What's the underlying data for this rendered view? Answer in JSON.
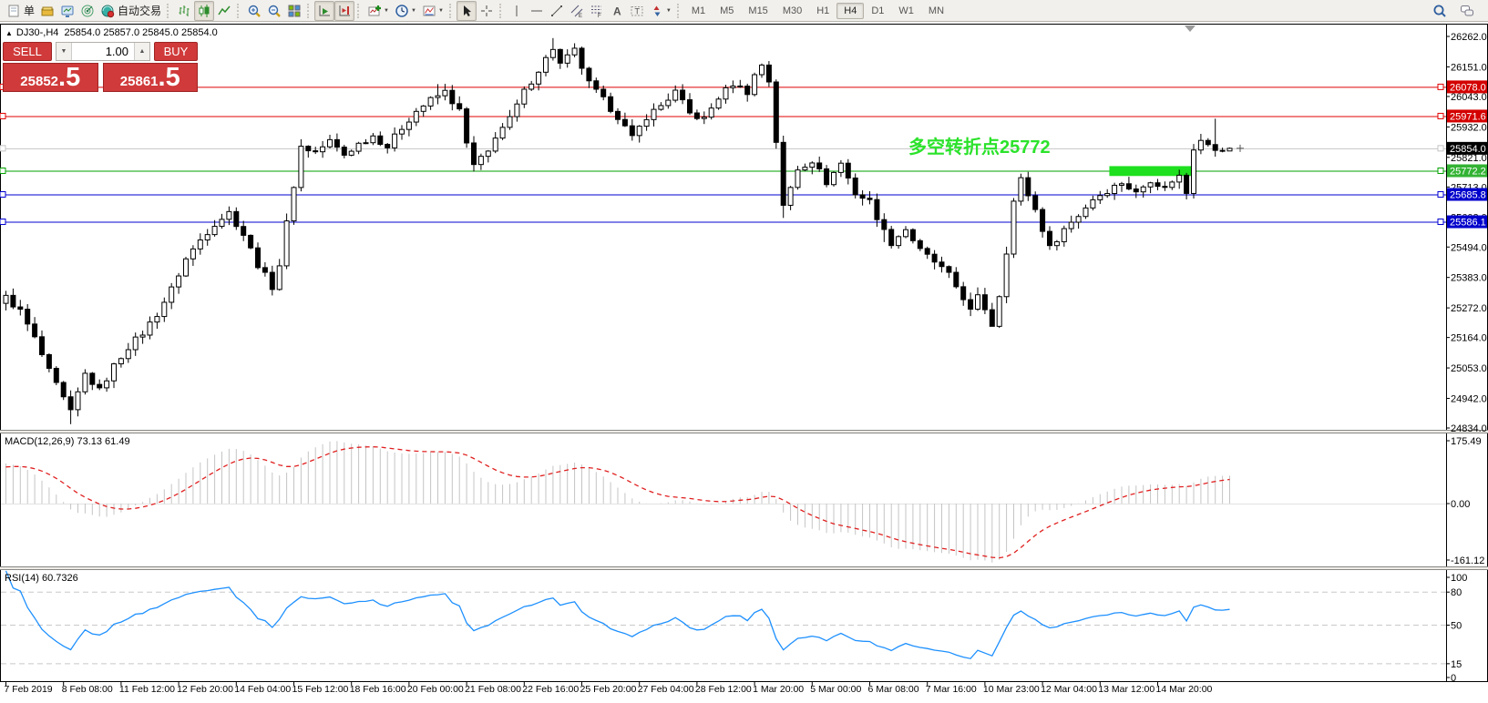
{
  "toolbar": {
    "groups": [
      {
        "name": "file",
        "items": [
          {
            "name": "new-order-button",
            "icon": "doc",
            "label": "单"
          },
          {
            "name": "market-watch-button",
            "icon": "gold"
          },
          {
            "name": "chart-window-button",
            "icon": "monitor"
          },
          {
            "name": "signals-button",
            "icon": "radar"
          },
          {
            "name": "autotrading-button",
            "icon": "autotrade",
            "label": "自动交易"
          }
        ]
      },
      {
        "name": "chart-type",
        "items": [
          {
            "name": "bar-chart-button",
            "icon": "bars"
          },
          {
            "name": "candlestick-chart-button",
            "icon": "candles",
            "pressed": true
          },
          {
            "name": "line-chart-button",
            "icon": "linechart"
          }
        ]
      },
      {
        "name": "zoom",
        "items": [
          {
            "name": "zoom-in-button",
            "icon": "zoomin"
          },
          {
            "name": "zoom-out-button",
            "icon": "zoomout"
          },
          {
            "name": "tile-windows-button",
            "icon": "tile"
          }
        ]
      },
      {
        "name": "scroll",
        "items": [
          {
            "name": "auto-scroll-button",
            "icon": "autoscroll",
            "pressed": true
          },
          {
            "name": "chart-shift-button",
            "icon": "shift",
            "pressed": true
          }
        ]
      },
      {
        "name": "insert",
        "items": [
          {
            "name": "indicators-button",
            "icon": "indicators",
            "dropdown": true
          },
          {
            "name": "periods-button",
            "icon": "clock",
            "dropdown": true
          },
          {
            "name": "templates-button",
            "icon": "template",
            "dropdown": true
          }
        ]
      },
      {
        "name": "pointer",
        "items": [
          {
            "name": "cursor-button",
            "icon": "cursor",
            "pressed": true
          },
          {
            "name": "crosshair-button",
            "icon": "crosshair"
          }
        ]
      },
      {
        "name": "objects",
        "items": [
          {
            "name": "vertical-line-button",
            "icon": "vline"
          },
          {
            "name": "horizontal-line-button",
            "icon": "hline"
          },
          {
            "name": "trendline-button",
            "icon": "trend"
          },
          {
            "name": "channel-button",
            "icon": "channel"
          },
          {
            "name": "fibonacci-button",
            "icon": "fibo"
          },
          {
            "name": "text-button",
            "icon": "textA"
          },
          {
            "name": "label-button",
            "icon": "labelT"
          },
          {
            "name": "arrows-button",
            "icon": "arrows",
            "dropdown": true
          }
        ]
      },
      {
        "name": "timeframes",
        "items": [
          {
            "name": "tf-m1",
            "label": "M1"
          },
          {
            "name": "tf-m5",
            "label": "M5"
          },
          {
            "name": "tf-m15",
            "label": "M15"
          },
          {
            "name": "tf-m30",
            "label": "M30"
          },
          {
            "name": "tf-h1",
            "label": "H1"
          },
          {
            "name": "tf-h4",
            "label": "H4",
            "active": true
          },
          {
            "name": "tf-d1",
            "label": "D1"
          },
          {
            "name": "tf-w1",
            "label": "W1"
          },
          {
            "name": "tf-mn",
            "label": "MN"
          }
        ]
      }
    ],
    "right": [
      {
        "name": "search-button",
        "icon": "search"
      },
      {
        "name": "community-button",
        "icon": "chat"
      }
    ]
  },
  "chart": {
    "title_symbol": "DJ30-,H4",
    "title_ohlc": "25854.0 25857.0 25845.0 25854.0",
    "collapse_glyph": "▲"
  },
  "trade_panel": {
    "sell_label": "SELL",
    "buy_label": "BUY",
    "volume": "1.00",
    "sell_price_main": "25852",
    "sell_price_frac": ".5",
    "buy_price_main": "25861",
    "buy_price_frac": ".5",
    "panel_color": "#d03a3a"
  },
  "chart_data": {
    "type": "candlestick",
    "symbol": "DJ30-",
    "timeframe": "H4",
    "bars_visible": 171,
    "current_ohlc": {
      "open": 25854.0,
      "high": 25857.0,
      "low": 25845.0,
      "close": 25854.0
    },
    "price_axis_ticks": [
      "26262.0",
      "26151.0",
      "26043.0",
      "25932.0",
      "25821.0",
      "25713.0",
      "25602.0",
      "25494.0",
      "25383.0",
      "25272.0",
      "25164.0",
      "25053.0",
      "24942.0",
      "24834.0"
    ],
    "time_axis_ticks": [
      {
        "label": "7 Feb 2019",
        "idx": 0
      },
      {
        "label": "8 Feb 08:00",
        "idx": 8
      },
      {
        "label": "11 Feb 12:00",
        "idx": 16
      },
      {
        "label": "12 Feb 20:00",
        "idx": 24
      },
      {
        "label": "14 Feb 04:00",
        "idx": 32
      },
      {
        "label": "15 Feb 12:00",
        "idx": 40
      },
      {
        "label": "18 Feb 16:00",
        "idx": 48
      },
      {
        "label": "20 Feb 00:00",
        "idx": 56
      },
      {
        "label": "21 Feb 08:00",
        "idx": 64
      },
      {
        "label": "22 Feb 16:00",
        "idx": 72
      },
      {
        "label": "25 Feb 20:00",
        "idx": 80
      },
      {
        "label": "27 Feb 04:00",
        "idx": 88
      },
      {
        "label": "28 Feb 12:00",
        "idx": 96
      },
      {
        "label": "1 Mar 20:00",
        "idx": 104
      },
      {
        "label": "5 Mar 00:00",
        "idx": 112
      },
      {
        "label": "6 Mar 08:00",
        "idx": 120
      },
      {
        "label": "7 Mar 16:00",
        "idx": 128
      },
      {
        "label": "10 Mar 23:00",
        "idx": 136
      },
      {
        "label": "12 Mar 04:00",
        "idx": 144
      },
      {
        "label": "13 Mar 12:00",
        "idx": 152
      },
      {
        "label": "14 Mar 20:00",
        "idx": 160
      }
    ],
    "levels": [
      {
        "price": 26078.0,
        "label": "26078.0",
        "color": "#e00000",
        "badge": "#d40000"
      },
      {
        "price": 25971.6,
        "label": "25971.6",
        "color": "#e00000",
        "badge": "#d40000"
      },
      {
        "price": 25854.0,
        "label": "25854.0",
        "color": "#c4c4c4",
        "badge": "#000000",
        "current": true
      },
      {
        "price": 25772.2,
        "label": "25772.2",
        "color": "#00a000",
        "badge": "#33b333"
      },
      {
        "price": 25685.8,
        "label": "25685.8",
        "color": "#0000d0",
        "badge": "#0000cc"
      },
      {
        "price": 25586.1,
        "label": "25586.1",
        "color": "#0000d0",
        "badge": "#0000cc"
      }
    ],
    "annotation": {
      "text": "多空转折点25772",
      "color": "#2be22b",
      "idx": 125.7,
      "price": 25890
    },
    "highlight_box": {
      "idx_start": 153.6,
      "idx_end": 165.5,
      "price_top": 25789,
      "price_bottom": 25753,
      "color": "#1ee01e"
    },
    "anchors": [
      [
        -30,
        24820
      ],
      [
        0,
        25310
      ],
      [
        2,
        25260
      ],
      [
        4,
        25160
      ],
      [
        6,
        25040
      ],
      [
        8,
        24940
      ],
      [
        9,
        24890
      ],
      [
        10,
        24960
      ],
      [
        11,
        25030
      ],
      [
        13,
        24970
      ],
      [
        15,
        25060
      ],
      [
        17,
        25130
      ],
      [
        19,
        25180
      ],
      [
        21,
        25250
      ],
      [
        23,
        25340
      ],
      [
        25,
        25450
      ],
      [
        27,
        25520
      ],
      [
        29,
        25580
      ],
      [
        31,
        25620
      ],
      [
        33,
        25540
      ],
      [
        35,
        25430
      ],
      [
        37,
        25350
      ],
      [
        38,
        25430
      ],
      [
        39,
        25580
      ],
      [
        41,
        25860
      ],
      [
        43,
        25840
      ],
      [
        45,
        25880
      ],
      [
        47,
        25830
      ],
      [
        49,
        25870
      ],
      [
        51,
        25900
      ],
      [
        53,
        25860
      ],
      [
        55,
        25930
      ],
      [
        57,
        25990
      ],
      [
        59,
        26030
      ],
      [
        61,
        26060
      ],
      [
        63,
        25990
      ],
      [
        64,
        25870
      ],
      [
        65,
        25790
      ],
      [
        67,
        25840
      ],
      [
        68,
        25900
      ],
      [
        70,
        25960
      ],
      [
        72,
        26060
      ],
      [
        74,
        26140
      ],
      [
        76,
        26220
      ],
      [
        77,
        26160
      ],
      [
        79,
        26210
      ],
      [
        81,
        26090
      ],
      [
        83,
        26030
      ],
      [
        85,
        25970
      ],
      [
        87,
        25890
      ],
      [
        89,
        25970
      ],
      [
        91,
        26010
      ],
      [
        93,
        26060
      ],
      [
        95,
        25980
      ],
      [
        97,
        25960
      ],
      [
        99,
        26040
      ],
      [
        101,
        26090
      ],
      [
        103,
        26060
      ],
      [
        104,
        26120
      ],
      [
        105,
        26160
      ],
      [
        106,
        26100
      ],
      [
        107,
        25880
      ],
      [
        108,
        25640
      ],
      [
        110,
        25780
      ],
      [
        112,
        25810
      ],
      [
        114,
        25730
      ],
      [
        116,
        25800
      ],
      [
        118,
        25690
      ],
      [
        120,
        25660
      ],
      [
        122,
        25550
      ],
      [
        123,
        25510
      ],
      [
        125,
        25560
      ],
      [
        127,
        25480
      ],
      [
        129,
        25440
      ],
      [
        131,
        25390
      ],
      [
        133,
        25310
      ],
      [
        134,
        25260
      ],
      [
        135,
        25310
      ],
      [
        136,
        25270
      ],
      [
        137,
        25210
      ],
      [
        138,
        25320
      ],
      [
        139,
        25480
      ],
      [
        140,
        25660
      ],
      [
        141,
        25740
      ],
      [
        143,
        25630
      ],
      [
        145,
        25490
      ],
      [
        147,
        25560
      ],
      [
        149,
        25610
      ],
      [
        151,
        25670
      ],
      [
        153,
        25700
      ],
      [
        155,
        25730
      ],
      [
        157,
        25690
      ],
      [
        159,
        25740
      ],
      [
        161,
        25710
      ],
      [
        163,
        25755
      ],
      [
        164,
        25690
      ],
      [
        165,
        25850
      ],
      [
        166,
        25885
      ],
      [
        167,
        25870
      ],
      [
        168,
        25845
      ],
      [
        169,
        25845
      ],
      [
        170,
        25854
      ]
    ],
    "wick_overrides": [
      {
        "i": 9,
        "low": 24848
      },
      {
        "i": 60,
        "high": 26088
      },
      {
        "i": 62,
        "high": 26085
      },
      {
        "i": 76,
        "high": 26256
      },
      {
        "i": 108,
        "low": 25600
      },
      {
        "i": 122,
        "low": 25512
      },
      {
        "i": 137,
        "low": 25206
      },
      {
        "i": 168,
        "high": 25962
      },
      {
        "i": 170,
        "high": 25857,
        "low": 25845
      }
    ],
    "indicators": {
      "macd": {
        "label": "MACD(12,26,9) 73.13 61.49",
        "params": "12,26,9",
        "current_main": 73.13,
        "current_signal": 61.49,
        "axis_labels": [
          "175.49",
          "0.00",
          "-161.12"
        ],
        "histogram_color": "#c4c4c4",
        "signal_color": "#e02020"
      },
      "rsi": {
        "label": "RSI(14) 60.7326",
        "params": "14",
        "current": 60.7326,
        "axis_labels": [
          "100",
          "80",
          "50",
          "15",
          "0"
        ],
        "levels": [
          80,
          50,
          15
        ],
        "line_color": "#1e90ff"
      }
    }
  }
}
